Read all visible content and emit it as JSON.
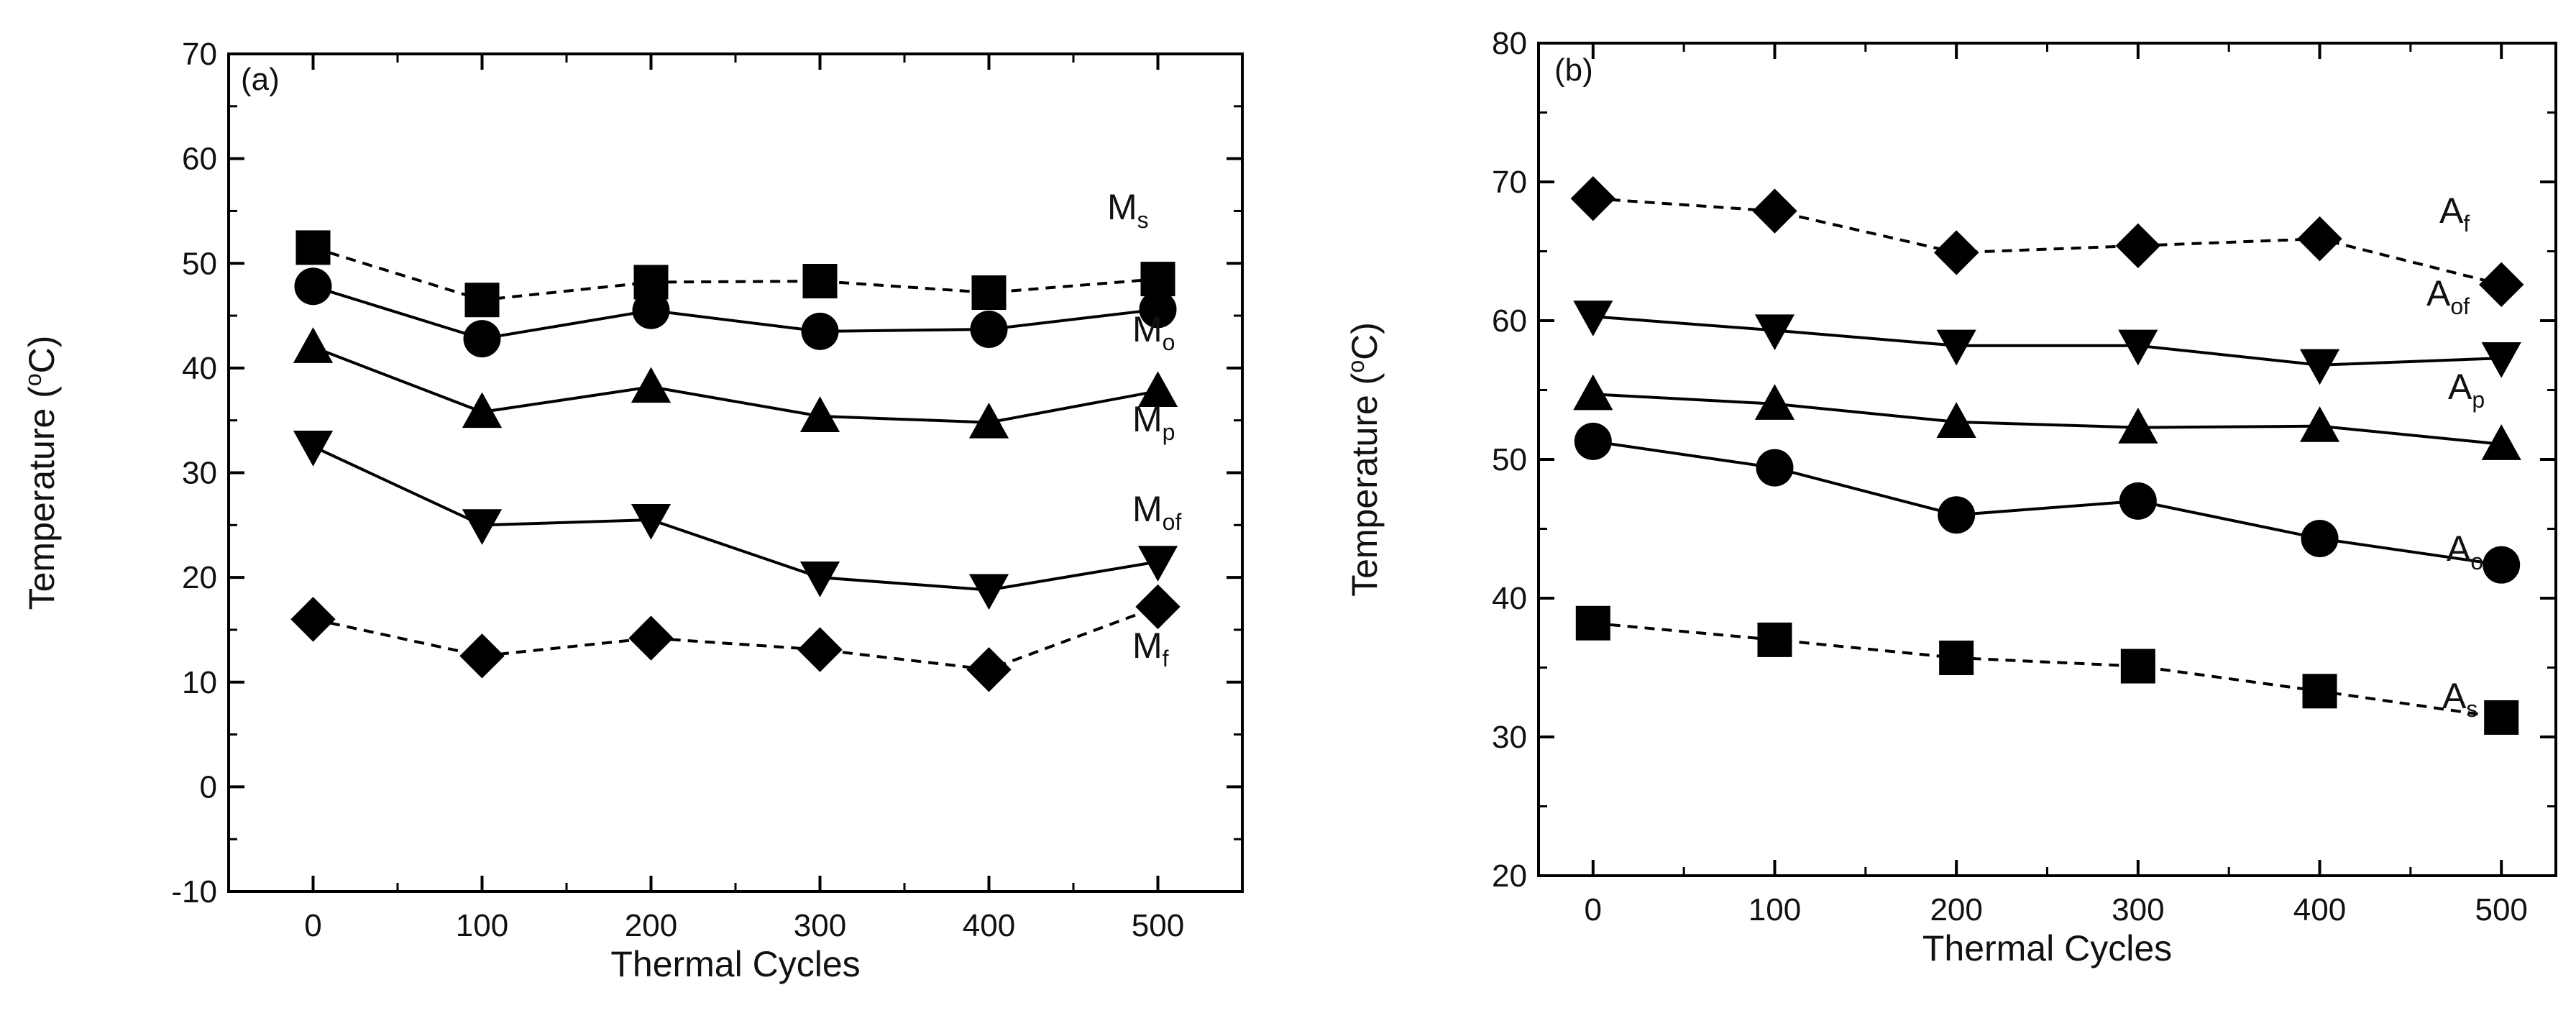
{
  "chart_data": [
    {
      "type": "line",
      "panel_label": "(a)",
      "xlabel": "Thermal Cycles",
      "ylabel": "Temperature (°C)",
      "ylabel_parts": {
        "pre": "Temperature (",
        "sup": "o",
        "post": "C)"
      },
      "xlim": [
        -50,
        550
      ],
      "ylim": [
        -10,
        70
      ],
      "x": [
        0,
        100,
        200,
        300,
        400,
        500
      ],
      "xticks": [
        "0",
        "100",
        "200",
        "300",
        "400",
        "500"
      ],
      "yticks": [
        "-10",
        "0",
        "10",
        "20",
        "30",
        "40",
        "50",
        "60",
        "70"
      ],
      "series": [
        {
          "name": "Ms",
          "label_main": "M",
          "label_sub": "s",
          "marker": "square",
          "linestyle": "dashed",
          "values": [
            51.5,
            46.5,
            48.2,
            48.3,
            47.2,
            48.5
          ]
        },
        {
          "name": "Mo",
          "label_main": "M",
          "label_sub": "o",
          "marker": "circle",
          "linestyle": "solid",
          "values": [
            47.8,
            42.8,
            45.5,
            43.5,
            43.7,
            45.6
          ]
        },
        {
          "name": "Mp",
          "label_main": "M",
          "label_sub": "p",
          "marker": "triangle-up",
          "linestyle": "solid",
          "values": [
            42.0,
            35.8,
            38.2,
            35.4,
            34.8,
            37.8
          ]
        },
        {
          "name": "Mof",
          "label_main": "M",
          "label_sub": "of",
          "marker": "triangle-down",
          "linestyle": "solid",
          "values": [
            32.5,
            25.0,
            25.5,
            20.0,
            18.8,
            21.5
          ]
        },
        {
          "name": "Mf",
          "label_main": "M",
          "label_sub": "f",
          "marker": "diamond",
          "linestyle": "dashed",
          "values": [
            16.0,
            12.5,
            14.2,
            13.1,
            11.2,
            17.2
          ]
        }
      ]
    },
    {
      "type": "line",
      "panel_label": "(b)",
      "xlabel": "Thermal Cycles",
      "ylabel": "Temperature (°C)",
      "ylabel_parts": {
        "pre": "Temperature (",
        "sup": "o",
        "post": "C)"
      },
      "xlim": [
        -30,
        530
      ],
      "ylim": [
        20,
        80
      ],
      "x": [
        0,
        100,
        200,
        300,
        400,
        500
      ],
      "xticks": [
        "0",
        "100",
        "200",
        "300",
        "400",
        "500"
      ],
      "yticks": [
        "20",
        "30",
        "40",
        "50",
        "60",
        "70",
        "80"
      ],
      "series": [
        {
          "name": "Af",
          "label_main": "A",
          "label_sub": "f",
          "marker": "diamond",
          "linestyle": "dashed",
          "values": [
            68.8,
            67.9,
            64.9,
            65.4,
            65.9,
            62.6
          ]
        },
        {
          "name": "Aof",
          "label_main": "A",
          "label_sub": "of",
          "marker": "triangle-down",
          "linestyle": "solid",
          "values": [
            60.3,
            59.3,
            58.2,
            58.2,
            56.8,
            57.3
          ]
        },
        {
          "name": "Ap",
          "label_main": "A",
          "label_sub": "p",
          "marker": "triangle-up",
          "linestyle": "solid",
          "values": [
            54.7,
            54.0,
            52.7,
            52.3,
            52.4,
            51.1
          ]
        },
        {
          "name": "Ao",
          "label_main": "A",
          "label_sub": "o",
          "marker": "circle",
          "linestyle": "solid",
          "values": [
            51.3,
            49.4,
            46.0,
            47.0,
            44.3,
            42.4
          ]
        },
        {
          "name": "As",
          "label_main": "A",
          "label_sub": "s",
          "marker": "square",
          "linestyle": "dashed",
          "values": [
            38.2,
            37.0,
            35.7,
            35.1,
            33.3,
            31.4
          ]
        }
      ]
    }
  ]
}
